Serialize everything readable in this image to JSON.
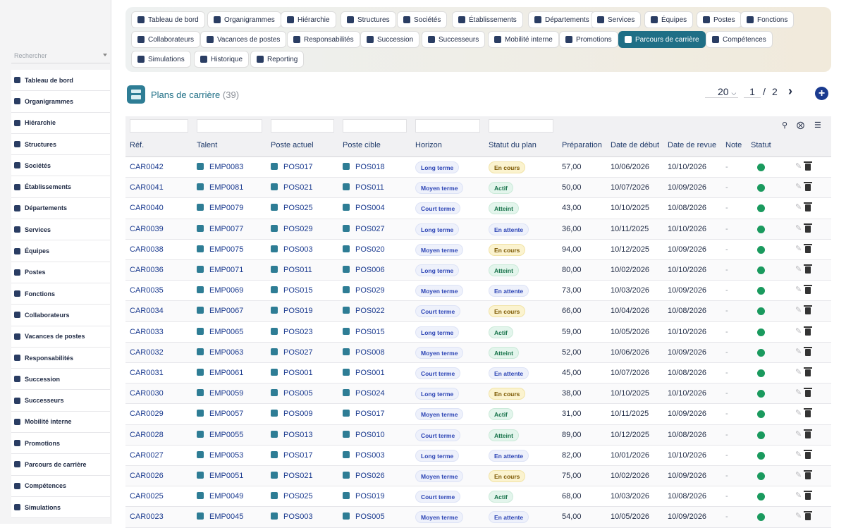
{
  "sidebar": {
    "search_placeholder": "Rechercher",
    "items": [
      {
        "label": "Tableau de bord",
        "icon": "dashboard-icon"
      },
      {
        "label": "Organigrammes",
        "icon": "org-chart-icon"
      },
      {
        "label": "Hiérarchie",
        "icon": "hierarchy-icon"
      },
      {
        "label": "Structures",
        "icon": "layers-icon"
      },
      {
        "label": "Sociétés",
        "icon": "building-icon"
      },
      {
        "label": "Établissements",
        "icon": "office-icon"
      },
      {
        "label": "Départements",
        "icon": "sitemap-icon"
      },
      {
        "label": "Services",
        "icon": "cubes-icon"
      },
      {
        "label": "Équipes",
        "icon": "team-icon"
      },
      {
        "label": "Postes",
        "icon": "badge-icon"
      },
      {
        "label": "Fonctions",
        "icon": "briefcase-icon"
      },
      {
        "label": "Collaborateurs",
        "icon": "user-icon"
      },
      {
        "label": "Vacances de postes",
        "icon": "user-slash-icon"
      },
      {
        "label": "Responsabilités",
        "icon": "list-icon"
      },
      {
        "label": "Succession",
        "icon": "user-chart-icon"
      },
      {
        "label": "Successeurs",
        "icon": "users-icon"
      },
      {
        "label": "Mobilité interne",
        "icon": "arrows-icon"
      },
      {
        "label": "Promotions",
        "icon": "arrow-up-icon"
      },
      {
        "label": "Parcours de carrière",
        "icon": "route-icon"
      },
      {
        "label": "Compétences",
        "icon": "brain-icon"
      },
      {
        "label": "Simulations",
        "icon": "diagram-icon"
      }
    ]
  },
  "topnav": {
    "row1": [
      "Tableau de bord",
      "Organigrammes",
      "Hiérarchie",
      "Structures",
      "Sociétés",
      "Établissements",
      "Départements",
      "Services",
      "Équipes",
      "Postes",
      "Fonctions"
    ],
    "row2": [
      "Collaborateurs",
      "Vacances de postes",
      "Responsabilités",
      "Succession",
      "Successeurs",
      "Mobilité interne",
      "Promotions",
      "Parcours de carrière",
      "Compétences"
    ],
    "row3": [
      "Simulations",
      "Historique",
      "Reporting"
    ],
    "active": "Parcours de carrière"
  },
  "page": {
    "title": "Plans de carrière",
    "count": "(39)",
    "page_size": "20",
    "current_page": "1",
    "separator": "/",
    "total_pages": "2",
    "add_label": "+"
  },
  "table": {
    "columns": [
      "Réf.",
      "Talent",
      "Poste actuel",
      "Poste cible",
      "Horizon",
      "Statut du plan",
      "Préparation",
      "Date de début",
      "Date de revue",
      "Note",
      "Statut"
    ],
    "rows": [
      {
        "ref": "CAR0042",
        "talent": "EMP0083",
        "actuel": "POS017",
        "cible": "POS018",
        "horizon": "Long terme",
        "statut": "En cours",
        "prep": "57,00",
        "debut": "10/06/2026",
        "revue": "10/10/2026",
        "note": "-"
      },
      {
        "ref": "CAR0041",
        "talent": "EMP0081",
        "actuel": "POS021",
        "cible": "POS011",
        "horizon": "Moyen terme",
        "statut": "Actif",
        "prep": "50,00",
        "debut": "10/07/2026",
        "revue": "10/09/2026",
        "note": "-"
      },
      {
        "ref": "CAR0040",
        "talent": "EMP0079",
        "actuel": "POS025",
        "cible": "POS004",
        "horizon": "Court terme",
        "statut": "Atteint",
        "prep": "43,00",
        "debut": "10/10/2025",
        "revue": "10/08/2026",
        "note": "-"
      },
      {
        "ref": "CAR0039",
        "talent": "EMP0077",
        "actuel": "POS029",
        "cible": "POS027",
        "horizon": "Long terme",
        "statut": "En attente",
        "prep": "36,00",
        "debut": "10/11/2025",
        "revue": "10/10/2026",
        "note": "-"
      },
      {
        "ref": "CAR0038",
        "talent": "EMP0075",
        "actuel": "POS003",
        "cible": "POS020",
        "horizon": "Moyen terme",
        "statut": "En cours",
        "prep": "94,00",
        "debut": "10/12/2025",
        "revue": "10/09/2026",
        "note": "-"
      },
      {
        "ref": "CAR0036",
        "talent": "EMP0071",
        "actuel": "POS011",
        "cible": "POS006",
        "horizon": "Long terme",
        "statut": "Atteint",
        "prep": "80,00",
        "debut": "10/02/2026",
        "revue": "10/10/2026",
        "note": "-"
      },
      {
        "ref": "CAR0035",
        "talent": "EMP0069",
        "actuel": "POS015",
        "cible": "POS029",
        "horizon": "Moyen terme",
        "statut": "En attente",
        "prep": "73,00",
        "debut": "10/03/2026",
        "revue": "10/09/2026",
        "note": "-"
      },
      {
        "ref": "CAR0034",
        "talent": "EMP0067",
        "actuel": "POS019",
        "cible": "POS022",
        "horizon": "Court terme",
        "statut": "En cours",
        "prep": "66,00",
        "debut": "10/04/2026",
        "revue": "10/08/2026",
        "note": "-"
      },
      {
        "ref": "CAR0033",
        "talent": "EMP0065",
        "actuel": "POS023",
        "cible": "POS015",
        "horizon": "Long terme",
        "statut": "Actif",
        "prep": "59,00",
        "debut": "10/05/2026",
        "revue": "10/10/2026",
        "note": "-"
      },
      {
        "ref": "CAR0032",
        "talent": "EMP0063",
        "actuel": "POS027",
        "cible": "POS008",
        "horizon": "Moyen terme",
        "statut": "Atteint",
        "prep": "52,00",
        "debut": "10/06/2026",
        "revue": "10/09/2026",
        "note": "-"
      },
      {
        "ref": "CAR0031",
        "talent": "EMP0061",
        "actuel": "POS001",
        "cible": "POS001",
        "horizon": "Court terme",
        "statut": "En attente",
        "prep": "45,00",
        "debut": "10/07/2026",
        "revue": "10/08/2026",
        "note": "-"
      },
      {
        "ref": "CAR0030",
        "talent": "EMP0059",
        "actuel": "POS005",
        "cible": "POS024",
        "horizon": "Long terme",
        "statut": "En cours",
        "prep": "38,00",
        "debut": "10/10/2025",
        "revue": "10/10/2026",
        "note": "-"
      },
      {
        "ref": "CAR0029",
        "talent": "EMP0057",
        "actuel": "POS009",
        "cible": "POS017",
        "horizon": "Moyen terme",
        "statut": "Actif",
        "prep": "31,00",
        "debut": "10/11/2025",
        "revue": "10/09/2026",
        "note": "-"
      },
      {
        "ref": "CAR0028",
        "talent": "EMP0055",
        "actuel": "POS013",
        "cible": "POS010",
        "horizon": "Court terme",
        "statut": "Atteint",
        "prep": "89,00",
        "debut": "10/12/2025",
        "revue": "10/08/2026",
        "note": "-"
      },
      {
        "ref": "CAR0027",
        "talent": "EMP0053",
        "actuel": "POS017",
        "cible": "POS003",
        "horizon": "Long terme",
        "statut": "En attente",
        "prep": "82,00",
        "debut": "10/01/2026",
        "revue": "10/10/2026",
        "note": "-"
      },
      {
        "ref": "CAR0026",
        "talent": "EMP0051",
        "actuel": "POS021",
        "cible": "POS026",
        "horizon": "Moyen terme",
        "statut": "En cours",
        "prep": "75,00",
        "debut": "10/02/2026",
        "revue": "10/09/2026",
        "note": "-"
      },
      {
        "ref": "CAR0025",
        "talent": "EMP0049",
        "actuel": "POS025",
        "cible": "POS019",
        "horizon": "Court terme",
        "statut": "Actif",
        "prep": "68,00",
        "debut": "10/03/2026",
        "revue": "10/08/2026",
        "note": "-"
      },
      {
        "ref": "CAR0023",
        "talent": "EMP0045",
        "actuel": "POS003",
        "cible": "POS005",
        "horizon": "Moyen terme",
        "statut": "En attente",
        "prep": "54,00",
        "debut": "10/05/2026",
        "revue": "10/09/2026",
        "note": "-"
      }
    ]
  }
}
